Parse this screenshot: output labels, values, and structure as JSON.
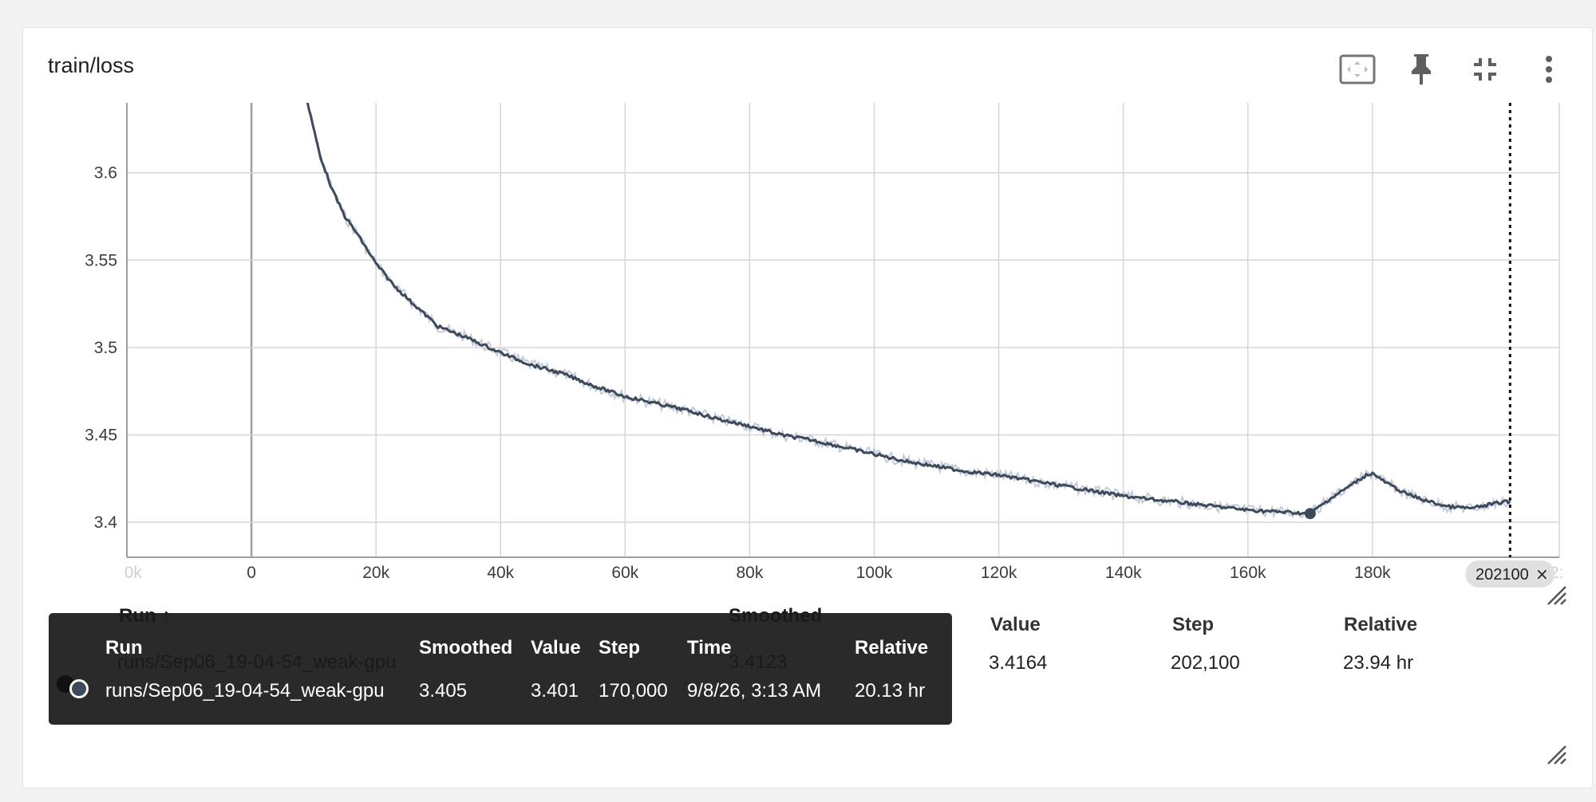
{
  "card": {
    "title": "train/loss",
    "toolbar": [
      {
        "name": "fit-domain-icon"
      },
      {
        "name": "pin-icon"
      },
      {
        "name": "collapse-icon"
      },
      {
        "name": "more-vert-icon"
      }
    ]
  },
  "chart_data": {
    "type": "line",
    "title": "",
    "xlabel": "",
    "ylabel": "",
    "xlim": [
      -20000,
      210000
    ],
    "ylim": [
      3.38,
      3.64
    ],
    "x_ticks": [
      "0",
      "20k",
      "40k",
      "60k",
      "80k",
      "100k",
      "120k",
      "140k",
      "160k",
      "180k"
    ],
    "x_tick_values": [
      0,
      20000,
      40000,
      60000,
      80000,
      100000,
      120000,
      140000,
      160000,
      180000
    ],
    "x_edge_labels": {
      "left": "0k",
      "right": "2:"
    },
    "y_ticks": [
      "3.4",
      "3.45",
      "3.5",
      "3.55",
      "3.6"
    ],
    "y_tick_values": [
      3.4,
      3.45,
      3.5,
      3.55,
      3.6
    ],
    "grid": true,
    "series": [
      {
        "color": "#3d4a5c",
        "raw_color": "#c4cbd9",
        "x": [
          9000,
          11000,
          13000,
          15000,
          17000,
          20000,
          23000,
          26000,
          30000,
          35000,
          40000,
          45000,
          50000,
          55000,
          60000,
          65000,
          70000,
          75000,
          80000,
          85000,
          90000,
          95000,
          100000,
          105000,
          110000,
          115000,
          120000,
          125000,
          130000,
          135000,
          140000,
          145000,
          150000,
          155000,
          160000,
          165000,
          170000,
          173000,
          176000,
          179000,
          180000,
          182000,
          185000,
          188000,
          192000,
          196000,
          200000,
          202100
        ],
        "y": [
          3.64,
          3.61,
          3.59,
          3.575,
          3.565,
          3.548,
          3.535,
          3.525,
          3.512,
          3.505,
          3.497,
          3.49,
          3.485,
          3.478,
          3.472,
          3.468,
          3.464,
          3.459,
          3.455,
          3.45,
          3.447,
          3.443,
          3.439,
          3.435,
          3.432,
          3.429,
          3.427,
          3.424,
          3.421,
          3.418,
          3.415,
          3.413,
          3.411,
          3.409,
          3.407,
          3.406,
          3.405,
          3.413,
          3.42,
          3.427,
          3.428,
          3.423,
          3.417,
          3.413,
          3.409,
          3.408,
          3.411,
          3.412
        ]
      }
    ],
    "highlight_point": {
      "x": 170000,
      "y": 3.405
    },
    "cursor": {
      "x": 202100,
      "label": "202100"
    }
  },
  "tooltip": {
    "headers": {
      "run": "Run",
      "smoothed": "Smoothed",
      "value": "Value",
      "step": "Step",
      "time": "Time",
      "relative": "Relative"
    },
    "row": {
      "run": "runs/Sep06_19-04-54_weak-gpu",
      "smoothed": "3.405",
      "value": "3.401",
      "step": "170,000",
      "time": "9/8/26, 3:13 AM",
      "relative": "20.13 hr"
    }
  },
  "data_table": {
    "headers": {
      "run": "Run ↑",
      "smoothed": "Smoothed",
      "value": "Value",
      "step": "Step",
      "relative": "Relative"
    },
    "row": {
      "run": "runs/Sep06_19-04-54_weak-gpu",
      "smoothed": "3.4123",
      "value": "3.4164",
      "step": "202,100",
      "relative": "23.94 hr"
    }
  }
}
